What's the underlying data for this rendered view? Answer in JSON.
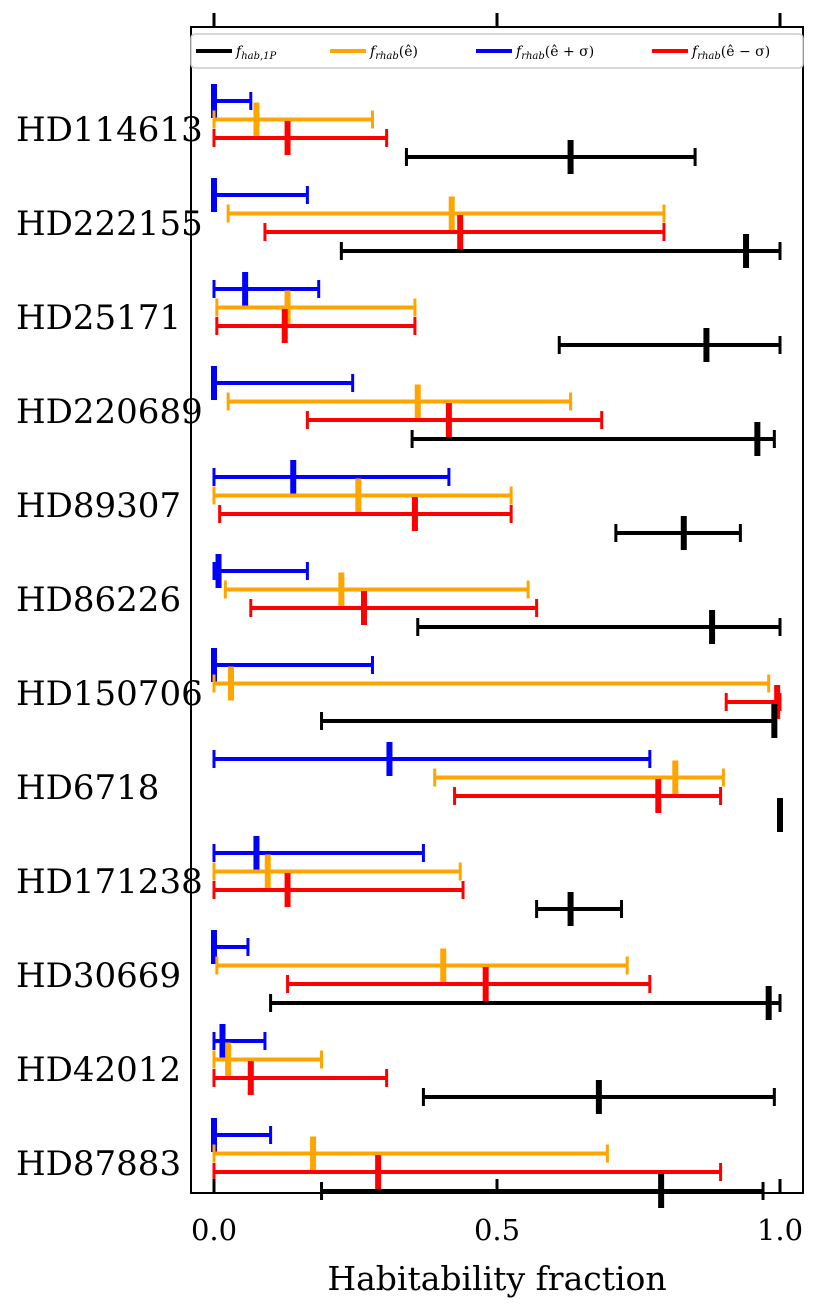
{
  "chart_data": {
    "type": "errorbar",
    "title": "",
    "xlabel": "Habitability fraction",
    "ylabel": "",
    "xlim": [
      -0.04,
      1.04
    ],
    "xticks": [
      "0.0",
      "0.5",
      "1.0"
    ],
    "xtick_values": [
      0,
      0.5,
      1.0
    ],
    "legend_position": "top",
    "series": [
      {
        "name": "f_{hab,1P}",
        "label_main": "f",
        "label_sub": "hab,1P",
        "label_arg": "",
        "color": "#000000"
      },
      {
        "name": "f_{rhab}(ê)",
        "label_main": "f",
        "label_sub": "rhab",
        "label_arg": "(ê)",
        "color": "#ffa500"
      },
      {
        "name": "f_{rhab}(ê+σ)",
        "label_main": "f",
        "label_sub": "rhab",
        "label_arg": "(ê + σ)",
        "color": "#0000ff"
      },
      {
        "name": "f_{rhab}(ê−σ)",
        "label_main": "f",
        "label_sub": "rhab",
        "label_arg": "(ê − σ)",
        "color": "#ff0000"
      }
    ],
    "categories": [
      {
        "name": "HD114613",
        "blue": {
          "value": 0.0,
          "low": 0.0,
          "high": 0.065
        },
        "orange": {
          "value": 0.075,
          "low": 0.0,
          "high": 0.28
        },
        "red": {
          "value": 0.13,
          "low": 0.0,
          "high": 0.305
        },
        "black": {
          "value": 0.63,
          "low": 0.34,
          "high": 0.85
        }
      },
      {
        "name": "HD222155",
        "blue": {
          "value": 0.0,
          "low": 0.0,
          "high": 0.165
        },
        "orange": {
          "value": 0.42,
          "low": 0.025,
          "high": 0.795
        },
        "red": {
          "value": 0.435,
          "low": 0.09,
          "high": 0.795
        },
        "black": {
          "value": 0.94,
          "low": 0.225,
          "high": 1.0
        }
      },
      {
        "name": "HD25171",
        "blue": {
          "value": 0.055,
          "low": 0.0,
          "high": 0.185
        },
        "orange": {
          "value": 0.13,
          "low": 0.005,
          "high": 0.355
        },
        "red": {
          "value": 0.125,
          "low": 0.005,
          "high": 0.355
        },
        "black": {
          "value": 0.87,
          "low": 0.61,
          "high": 1.0
        }
      },
      {
        "name": "HD220689",
        "blue": {
          "value": 0.0,
          "low": 0.0,
          "high": 0.245
        },
        "orange": {
          "value": 0.36,
          "low": 0.025,
          "high": 0.63
        },
        "red": {
          "value": 0.415,
          "low": 0.165,
          "high": 0.685
        },
        "black": {
          "value": 0.96,
          "low": 0.35,
          "high": 0.99
        }
      },
      {
        "name": "HD89307",
        "blue": {
          "value": 0.14,
          "low": 0.0,
          "high": 0.415
        },
        "orange": {
          "value": 0.255,
          "low": 0.0,
          "high": 0.525
        },
        "red": {
          "value": 0.355,
          "low": 0.01,
          "high": 0.525
        },
        "black": {
          "value": 0.83,
          "low": 0.71,
          "high": 0.93
        }
      },
      {
        "name": "HD86226",
        "blue": {
          "value": 0.008,
          "low": 0.0,
          "high": 0.165
        },
        "orange": {
          "value": 0.225,
          "low": 0.02,
          "high": 0.555
        },
        "red": {
          "value": 0.265,
          "low": 0.065,
          "high": 0.57
        },
        "black": {
          "value": 0.88,
          "low": 0.36,
          "high": 1.0
        }
      },
      {
        "name": "HD150706",
        "blue": {
          "value": 0.0,
          "low": 0.0,
          "high": 0.28
        },
        "orange": {
          "value": 0.03,
          "low": 0.0,
          "high": 0.98
        },
        "red": {
          "value": 0.995,
          "low": 0.905,
          "high": 1.0
        },
        "black": {
          "value": 0.99,
          "low": 0.19,
          "high": 0.99
        }
      },
      {
        "name": "HD6718",
        "blue": {
          "value": 0.31,
          "low": 0.0,
          "high": 0.77
        },
        "orange": {
          "value": 0.815,
          "low": 0.39,
          "high": 0.9
        },
        "red": {
          "value": 0.785,
          "low": 0.425,
          "high": 0.895
        },
        "black": {
          "value": 1.0,
          "low": 1.0,
          "high": 1.0
        }
      },
      {
        "name": "HD171238",
        "blue": {
          "value": 0.075,
          "low": 0.0,
          "high": 0.37
        },
        "orange": {
          "value": 0.095,
          "low": 0.0,
          "high": 0.435
        },
        "red": {
          "value": 0.13,
          "low": 0.0,
          "high": 0.44
        },
        "black": {
          "value": 0.63,
          "low": 0.57,
          "high": 0.72
        }
      },
      {
        "name": "HD30669",
        "blue": {
          "value": 0.0,
          "low": 0.0,
          "high": 0.06
        },
        "orange": {
          "value": 0.405,
          "low": 0.005,
          "high": 0.73
        },
        "red": {
          "value": 0.48,
          "low": 0.13,
          "high": 0.77
        },
        "black": {
          "value": 0.98,
          "low": 0.1,
          "high": 1.0
        }
      },
      {
        "name": "HD42012",
        "blue": {
          "value": 0.015,
          "low": 0.0,
          "high": 0.09
        },
        "orange": {
          "value": 0.025,
          "low": 0.0,
          "high": 0.19
        },
        "red": {
          "value": 0.065,
          "low": 0.0,
          "high": 0.305
        },
        "black": {
          "value": 0.68,
          "low": 0.37,
          "high": 0.99
        }
      },
      {
        "name": "HD87883",
        "blue": {
          "value": 0.0,
          "low": 0.0,
          "high": 0.1
        },
        "orange": {
          "value": 0.175,
          "low": 0.0,
          "high": 0.695
        },
        "red": {
          "value": 0.29,
          "low": 0.0,
          "high": 0.895
        },
        "black": {
          "value": 0.79,
          "low": 0.19,
          "high": 0.97
        }
      }
    ]
  }
}
